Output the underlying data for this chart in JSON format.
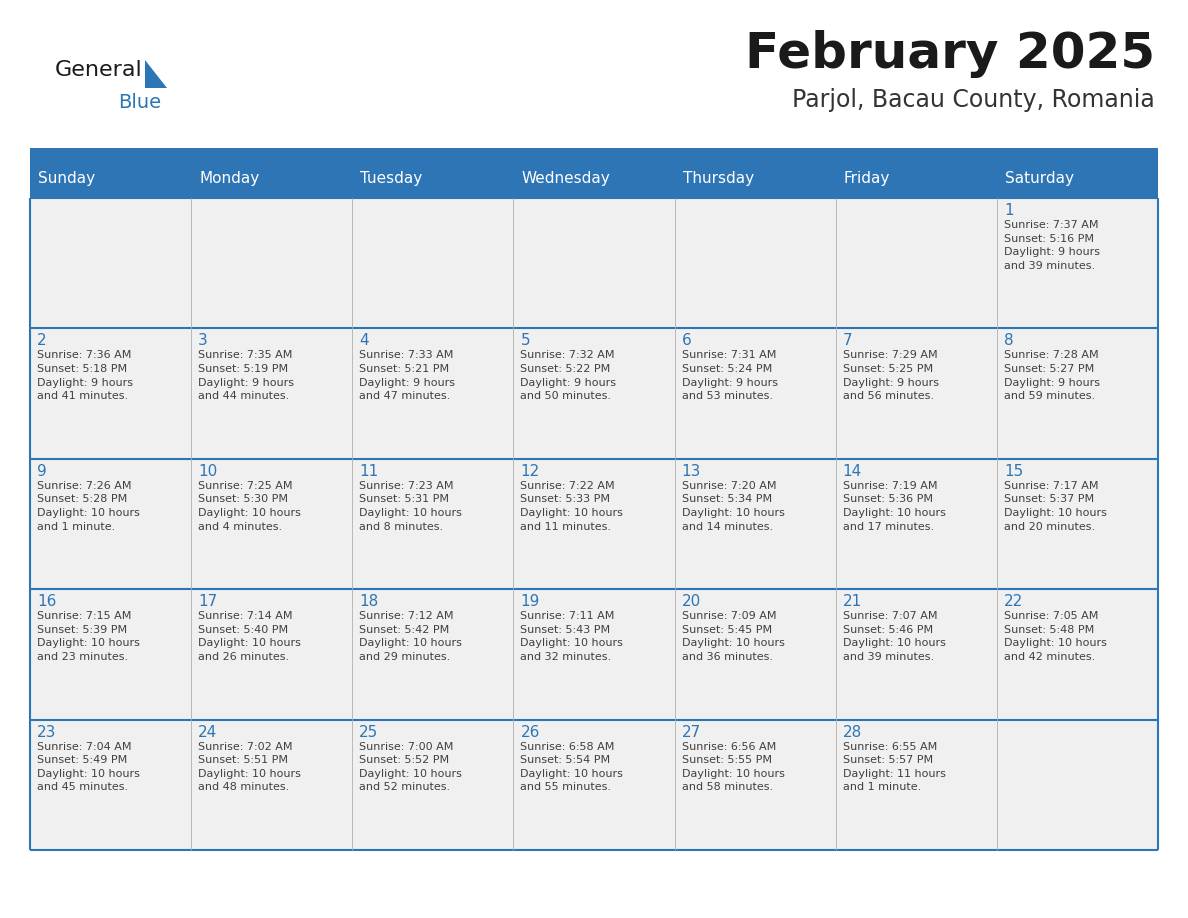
{
  "title": "February 2025",
  "subtitle": "Parjol, Bacau County, Romania",
  "header_color": "#2E75B6",
  "header_text_color": "#FFFFFF",
  "cell_bg_even": "#FFFFFF",
  "cell_bg_odd": "#F2F2F2",
  "cell_border_color": "#2E75B6",
  "day_number_color": "#2E75B6",
  "text_color": "#404040",
  "logo_general_color": "#1a1a1a",
  "logo_blue_color": "#2E75B6",
  "days_of_week": [
    "Sunday",
    "Monday",
    "Tuesday",
    "Wednesday",
    "Thursday",
    "Friday",
    "Saturday"
  ],
  "weeks": [
    [
      {
        "day": null,
        "info": null
      },
      {
        "day": null,
        "info": null
      },
      {
        "day": null,
        "info": null
      },
      {
        "day": null,
        "info": null
      },
      {
        "day": null,
        "info": null
      },
      {
        "day": null,
        "info": null
      },
      {
        "day": 1,
        "info": "Sunrise: 7:37 AM\nSunset: 5:16 PM\nDaylight: 9 hours\nand 39 minutes."
      }
    ],
    [
      {
        "day": 2,
        "info": "Sunrise: 7:36 AM\nSunset: 5:18 PM\nDaylight: 9 hours\nand 41 minutes."
      },
      {
        "day": 3,
        "info": "Sunrise: 7:35 AM\nSunset: 5:19 PM\nDaylight: 9 hours\nand 44 minutes."
      },
      {
        "day": 4,
        "info": "Sunrise: 7:33 AM\nSunset: 5:21 PM\nDaylight: 9 hours\nand 47 minutes."
      },
      {
        "day": 5,
        "info": "Sunrise: 7:32 AM\nSunset: 5:22 PM\nDaylight: 9 hours\nand 50 minutes."
      },
      {
        "day": 6,
        "info": "Sunrise: 7:31 AM\nSunset: 5:24 PM\nDaylight: 9 hours\nand 53 minutes."
      },
      {
        "day": 7,
        "info": "Sunrise: 7:29 AM\nSunset: 5:25 PM\nDaylight: 9 hours\nand 56 minutes."
      },
      {
        "day": 8,
        "info": "Sunrise: 7:28 AM\nSunset: 5:27 PM\nDaylight: 9 hours\nand 59 minutes."
      }
    ],
    [
      {
        "day": 9,
        "info": "Sunrise: 7:26 AM\nSunset: 5:28 PM\nDaylight: 10 hours\nand 1 minute."
      },
      {
        "day": 10,
        "info": "Sunrise: 7:25 AM\nSunset: 5:30 PM\nDaylight: 10 hours\nand 4 minutes."
      },
      {
        "day": 11,
        "info": "Sunrise: 7:23 AM\nSunset: 5:31 PM\nDaylight: 10 hours\nand 8 minutes."
      },
      {
        "day": 12,
        "info": "Sunrise: 7:22 AM\nSunset: 5:33 PM\nDaylight: 10 hours\nand 11 minutes."
      },
      {
        "day": 13,
        "info": "Sunrise: 7:20 AM\nSunset: 5:34 PM\nDaylight: 10 hours\nand 14 minutes."
      },
      {
        "day": 14,
        "info": "Sunrise: 7:19 AM\nSunset: 5:36 PM\nDaylight: 10 hours\nand 17 minutes."
      },
      {
        "day": 15,
        "info": "Sunrise: 7:17 AM\nSunset: 5:37 PM\nDaylight: 10 hours\nand 20 minutes."
      }
    ],
    [
      {
        "day": 16,
        "info": "Sunrise: 7:15 AM\nSunset: 5:39 PM\nDaylight: 10 hours\nand 23 minutes."
      },
      {
        "day": 17,
        "info": "Sunrise: 7:14 AM\nSunset: 5:40 PM\nDaylight: 10 hours\nand 26 minutes."
      },
      {
        "day": 18,
        "info": "Sunrise: 7:12 AM\nSunset: 5:42 PM\nDaylight: 10 hours\nand 29 minutes."
      },
      {
        "day": 19,
        "info": "Sunrise: 7:11 AM\nSunset: 5:43 PM\nDaylight: 10 hours\nand 32 minutes."
      },
      {
        "day": 20,
        "info": "Sunrise: 7:09 AM\nSunset: 5:45 PM\nDaylight: 10 hours\nand 36 minutes."
      },
      {
        "day": 21,
        "info": "Sunrise: 7:07 AM\nSunset: 5:46 PM\nDaylight: 10 hours\nand 39 minutes."
      },
      {
        "day": 22,
        "info": "Sunrise: 7:05 AM\nSunset: 5:48 PM\nDaylight: 10 hours\nand 42 minutes."
      }
    ],
    [
      {
        "day": 23,
        "info": "Sunrise: 7:04 AM\nSunset: 5:49 PM\nDaylight: 10 hours\nand 45 minutes."
      },
      {
        "day": 24,
        "info": "Sunrise: 7:02 AM\nSunset: 5:51 PM\nDaylight: 10 hours\nand 48 minutes."
      },
      {
        "day": 25,
        "info": "Sunrise: 7:00 AM\nSunset: 5:52 PM\nDaylight: 10 hours\nand 52 minutes."
      },
      {
        "day": 26,
        "info": "Sunrise: 6:58 AM\nSunset: 5:54 PM\nDaylight: 10 hours\nand 55 minutes."
      },
      {
        "day": 27,
        "info": "Sunrise: 6:56 AM\nSunset: 5:55 PM\nDaylight: 10 hours\nand 58 minutes."
      },
      {
        "day": 28,
        "info": "Sunrise: 6:55 AM\nSunset: 5:57 PM\nDaylight: 11 hours\nand 1 minute."
      },
      {
        "day": null,
        "info": null
      }
    ]
  ]
}
